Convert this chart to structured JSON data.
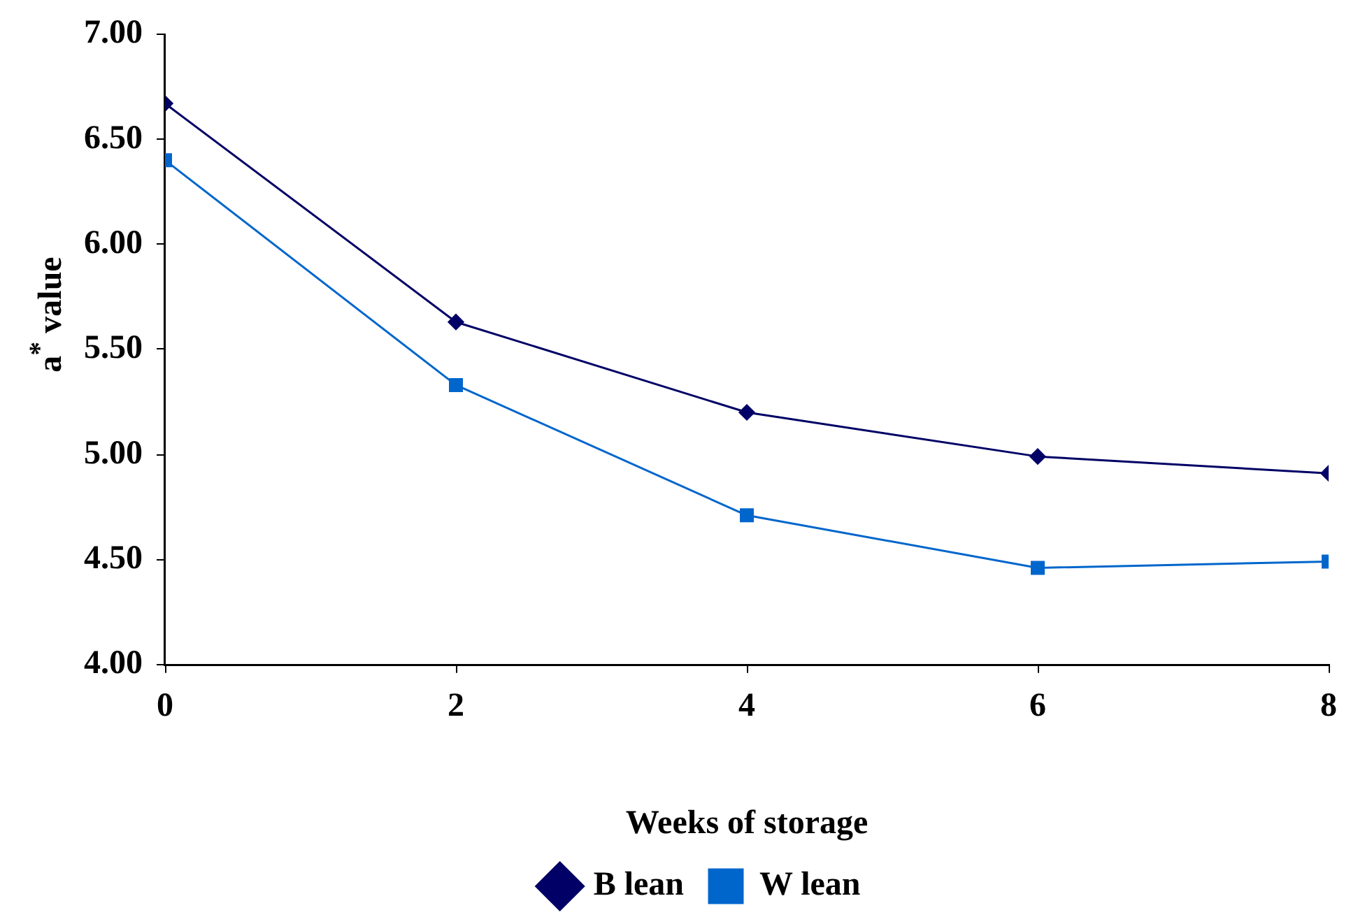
{
  "chart_data": {
    "type": "line",
    "xlabel": "Weeks of storage",
    "ylabel": "a$^{*}$ value",
    "x": [
      0,
      2,
      4,
      6,
      8
    ],
    "series": [
      {
        "name": "B lean",
        "color": "#000066",
        "marker": "diamond",
        "values": [
          6.67,
          5.63,
          5.2,
          4.99,
          4.91
        ]
      },
      {
        "name": "W lean",
        "color": "#0066cc",
        "marker": "square",
        "values": [
          6.4,
          5.33,
          4.71,
          4.46,
          4.49
        ]
      }
    ],
    "xlim": [
      0,
      8
    ],
    "xticks": [
      0,
      2,
      4,
      6,
      8
    ],
    "ylim": [
      4,
      7
    ],
    "yticks": [
      {
        "value": 4,
        "label": "4.00"
      },
      {
        "value": 4.5,
        "label": "4.50"
      },
      {
        "value": 5,
        "label": "5.00"
      },
      {
        "value": 5.5,
        "label": "5.50"
      },
      {
        "value": 6,
        "label": "6.00"
      },
      {
        "value": 6.5,
        "label": "6.50"
      },
      {
        "value": 7,
        "label": "7.00"
      }
    ],
    "grid": false,
    "legend": "bottom",
    "line_style": "solid"
  }
}
